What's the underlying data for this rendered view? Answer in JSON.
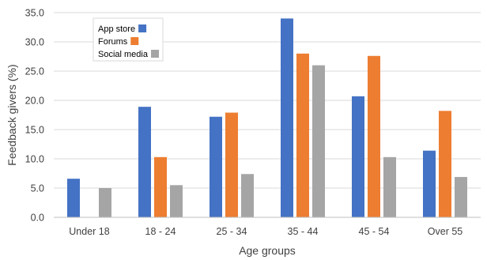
{
  "chart_data": {
    "type": "bar",
    "title": "",
    "xlabel": "Age groups",
    "ylabel": "Feedback givers (%)",
    "ylim": [
      0,
      35
    ],
    "yticks": [
      0,
      5,
      10,
      15,
      20,
      25,
      30,
      35
    ],
    "ytick_labels": [
      "0.0",
      "5.0",
      "10.0",
      "15.0",
      "20.0",
      "25.0",
      "30.0",
      "35.0"
    ],
    "grid": "horizontal",
    "legend_position": "top-left",
    "categories": [
      "Under 18",
      "18 - 24",
      "25 - 34",
      "35 - 44",
      "45 - 54",
      "Over 55"
    ],
    "series": [
      {
        "name": "App store",
        "color": "#4472C4",
        "values": [
          6.6,
          18.9,
          17.2,
          34.0,
          20.7,
          11.4
        ]
      },
      {
        "name": "Forums",
        "color": "#ED7D31",
        "values": [
          null,
          10.3,
          17.9,
          28.0,
          27.6,
          18.2
        ]
      },
      {
        "name": "Social media",
        "color": "#A5A5A5",
        "values": [
          5.0,
          5.5,
          7.4,
          26.0,
          10.3,
          6.9
        ]
      }
    ]
  }
}
